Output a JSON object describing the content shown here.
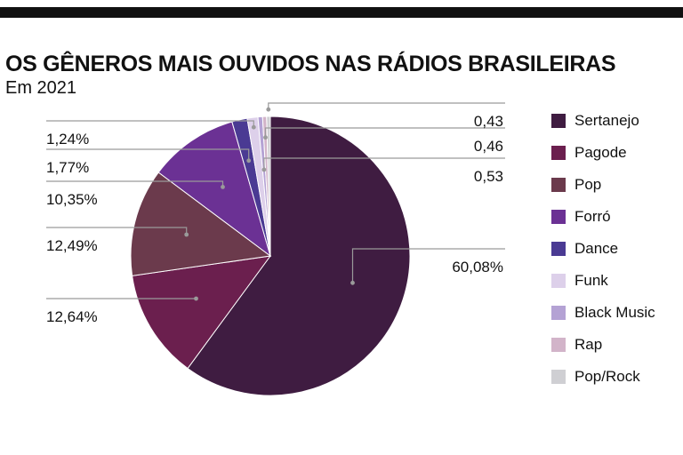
{
  "chart_data": {
    "type": "pie",
    "title": "OS GÊNEROS MAIS OUVIDOS NAS RÁDIOS BRASILEIRAS",
    "subtitle": "Em 2021",
    "categories": [
      "Sertanejo",
      "Pagode",
      "Pop",
      "Forró",
      "Dance",
      "Funk",
      "Black Music",
      "Rap",
      "Pop/Rock"
    ],
    "values": [
      60.08,
      12.64,
      12.49,
      10.35,
      1.77,
      1.24,
      0.53,
      0.46,
      0.43
    ],
    "data_labels": [
      "60,08%",
      "12,64%",
      "12,49%",
      "10,35%",
      "1,77%",
      "1,24%",
      "0,53",
      "0,46",
      "0,43"
    ],
    "colors": [
      "#3f1c41",
      "#6b1f4e",
      "#6b3a4c",
      "#6b3194",
      "#4a3a93",
      "#ddd0ea",
      "#b4a2d4",
      "#d2b4c9",
      "#cfcfd3"
    ],
    "legend_position": "right"
  }
}
